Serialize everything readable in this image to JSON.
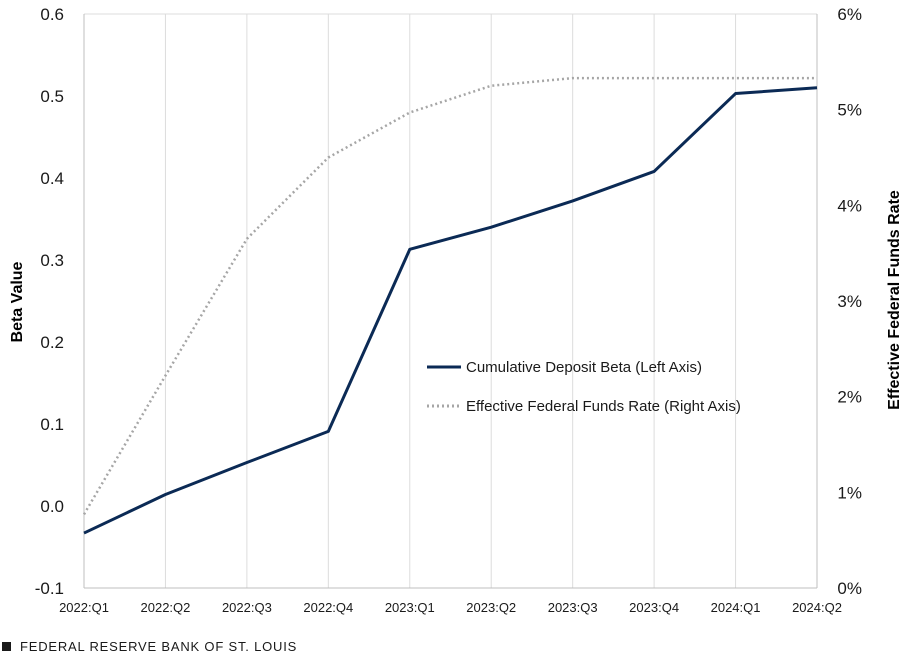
{
  "chart_data": {
    "type": "line",
    "categories": [
      "2022:Q1",
      "2022:Q2",
      "2022:Q3",
      "2022:Q4",
      "2023:Q1",
      "2023:Q2",
      "2023:Q3",
      "2023:Q4",
      "2024:Q1",
      "2024:Q2"
    ],
    "ylabel_left": "Beta Value",
    "ylabel_right": "Effective Federal Funds Rate",
    "ylim_left": [
      -0.1,
      0.6
    ],
    "ylim_right": [
      0,
      6
    ],
    "yticks_left": [
      "-0.1",
      "0.0",
      "0.1",
      "0.2",
      "0.3",
      "0.4",
      "0.5",
      "0.6"
    ],
    "yticks_right": [
      "0%",
      "1%",
      "2%",
      "3%",
      "4%",
      "5%",
      "6%"
    ],
    "legend_position": "center-right",
    "grid": "vertical",
    "series": [
      {
        "name": "Cumulative Deposit Beta (Left Axis)",
        "axis": "left",
        "style": "solid",
        "color": "#0b2a55",
        "values": [
          -0.033,
          0.014,
          0.053,
          0.091,
          0.313,
          0.34,
          0.372,
          0.408,
          0.503,
          0.51
        ]
      },
      {
        "name": "Effective Federal Funds Rate (Right Axis)",
        "axis": "right",
        "style": "dotted",
        "color": "#a6a6a6",
        "values": [
          0.77,
          2.22,
          3.65,
          4.5,
          4.97,
          5.25,
          5.33,
          5.33,
          5.33,
          5.33
        ]
      }
    ]
  },
  "footer": {
    "text": "FEDERAL RESERVE BANK OF ST. LOUIS"
  }
}
